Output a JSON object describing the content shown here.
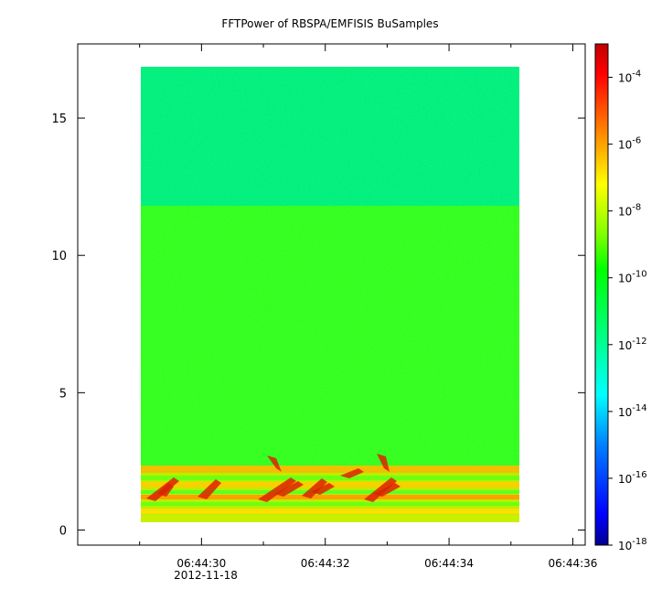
{
  "chart_data": {
    "type": "heatmap",
    "title": "FFTPower of RBSPA/EMFISIS  BuSamples",
    "xlabel": "",
    "ylabel": "",
    "x_range": [
      "06:44:28.00",
      "06:44:36.20"
    ],
    "y_range": [
      -0.55,
      17.7
    ],
    "data_extent": {
      "x": [
        "06:44:29.10",
        "06:44:35.05"
      ],
      "y": [
        0.0,
        17.5
      ]
    },
    "x_ticks": [
      {
        "value": "06:44:30",
        "label": "06:44:30"
      },
      {
        "value": "06:44:32",
        "label": "06:44:32"
      },
      {
        "value": "06:44:34",
        "label": "06:44:34"
      },
      {
        "value": "06:44:36",
        "label": "06:44:36"
      }
    ],
    "x_minor_ticks": [
      "06:44:29",
      "06:44:31",
      "06:44:33",
      "06:44:35"
    ],
    "date_label": "2012-11-18",
    "y_ticks": [
      0,
      5,
      10,
      15
    ],
    "colorbar": {
      "scale": "log",
      "range": [
        1e-18,
        0.001
      ],
      "tick_exponents": [
        -4,
        -6,
        -8,
        -10,
        -12,
        -14,
        -16,
        -18
      ],
      "tick_base": "10",
      "colormap": [
        "#00008f",
        "#0000ff",
        "#0080ff",
        "#00ffff",
        "#00ff80",
        "#00ff00",
        "#80ff00",
        "#ffff00",
        "#ff8000",
        "#ff0000",
        "#800000"
      ]
    },
    "regions": [
      {
        "y": [
          12.2,
          17.5
        ],
        "level": "1e-12"
      },
      {
        "y": [
          2.2,
          12.2
        ],
        "level": "1e-10"
      },
      {
        "y": [
          0.0,
          2.2
        ],
        "level": "1e-8 to 1e-6"
      }
    ],
    "grid": false,
    "colors": {
      "upper_band": "#00f080",
      "mid_band": "#33ff22",
      "bursts": "#dd2200"
    }
  }
}
